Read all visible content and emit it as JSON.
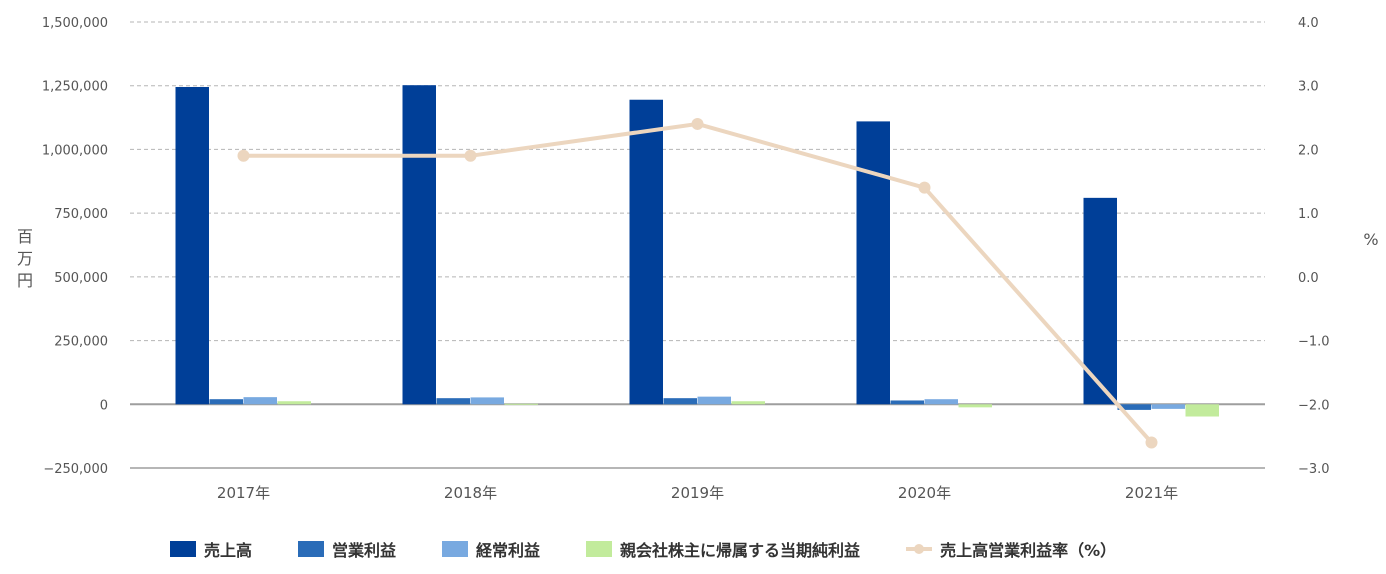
{
  "chart_data": {
    "type": "bar",
    "categories": [
      "2017年",
      "2018年",
      "2019年",
      "2020年",
      "2021年"
    ],
    "series": [
      {
        "name": "売上高",
        "type": "bar",
        "axis": "left",
        "color": "#003f98",
        "values": [
          1245000,
          1252000,
          1195000,
          1110000,
          810000
        ]
      },
      {
        "name": "営業利益",
        "type": "bar",
        "axis": "left",
        "color": "#2a6cb8",
        "values": [
          20000,
          24000,
          24000,
          15000,
          -22000
        ]
      },
      {
        "name": "経常利益",
        "type": "bar",
        "axis": "left",
        "color": "#78a9e0",
        "values": [
          28000,
          27000,
          30000,
          20000,
          -18000
        ]
      },
      {
        "name": "親会社株主に帰属する当期純利益",
        "type": "bar",
        "axis": "left",
        "color": "#c2eb9c",
        "values": [
          12000,
          2000,
          12000,
          -12000,
          -48000
        ]
      },
      {
        "name": "売上高営業利益率（%）",
        "type": "line",
        "axis": "right",
        "color": "#ecd6bf",
        "values": [
          1.9,
          1.9,
          2.4,
          1.4,
          -2.6
        ]
      }
    ],
    "left_axis": {
      "ylim": [
        -250000,
        1500000
      ],
      "ticks": [
        {
          "value": -250000,
          "label": "−250,000"
        },
        {
          "value": 0,
          "label": "0"
        },
        {
          "value": 250000,
          "label": "250,000"
        },
        {
          "value": 500000,
          "label": "500,000"
        },
        {
          "value": 750000,
          "label": "750,000"
        },
        {
          "value": 1000000,
          "label": "1,000,000"
        },
        {
          "value": 1250000,
          "label": "1,250,000"
        },
        {
          "value": 1500000,
          "label": "1,500,000"
        }
      ],
      "label": "百万円"
    },
    "right_axis": {
      "ylim": [
        -3.0,
        4.0
      ],
      "ticks": [
        {
          "value": -3.0,
          "label": "−3.0"
        },
        {
          "value": -2.0,
          "label": "−2.0"
        },
        {
          "value": -1.0,
          "label": "−1.0"
        },
        {
          "value": 0.0,
          "label": "0.0"
        },
        {
          "value": 1.0,
          "label": "1.0"
        },
        {
          "value": 2.0,
          "label": "2.0"
        },
        {
          "value": 3.0,
          "label": "3.0"
        },
        {
          "value": 4.0,
          "label": "4.0"
        }
      ],
      "label": "%"
    },
    "grid": true,
    "legend_position": "bottom"
  }
}
